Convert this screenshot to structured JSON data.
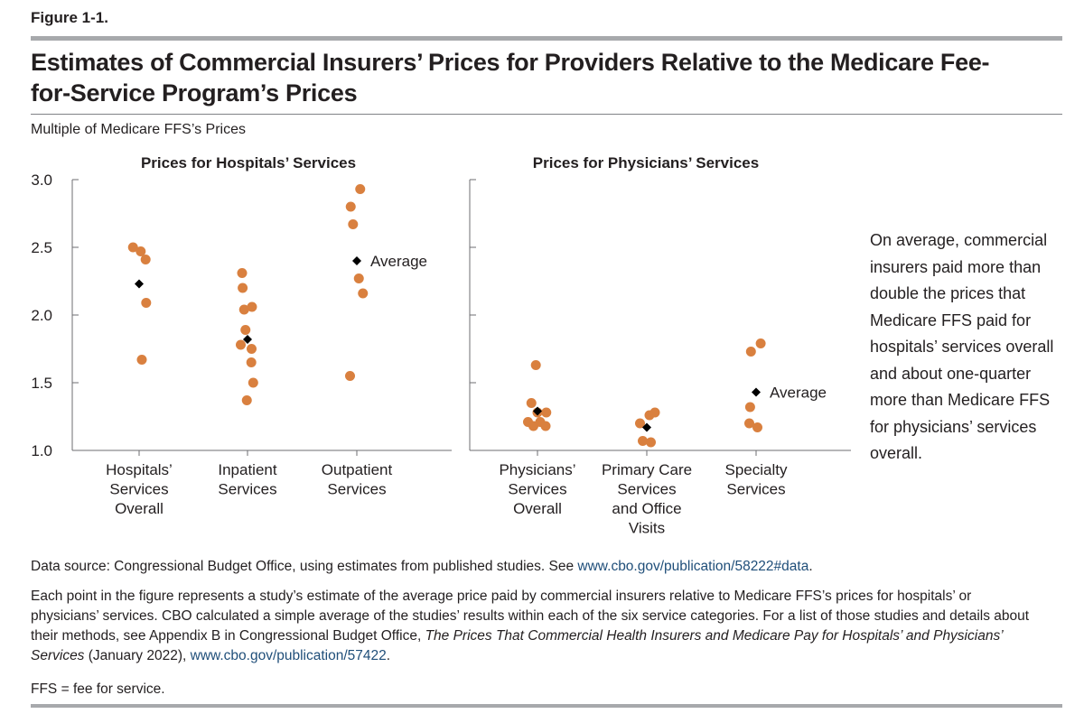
{
  "figure_label": "Figure 1-1.",
  "title": "Estimates of Commercial Insurers’ Prices for Providers Relative to the Medicare Fee-for-Service Program’s Prices",
  "annotation": "On average, commercial insurers paid more than double the prices that Medicare FFS paid for hospitals’ services overall and about one-quarter more than Medicare FFS for physicians’ services overall.",
  "notes": {
    "source_prefix": "Data source: Congressional Budget Office, using estimates from published studies. See ",
    "source_link": "www.cbo.gov/publication/58222#data",
    "source_suffix": ".",
    "note_part1": "Each point in the figure represents a study’s estimate of the average price paid by commercial insurers relative to Medicare FFS’s prices for hospitals’ or physicians’ services. CBO calculated a simple average of the studies’ results within each of the six service categories. For a list of those studies and details about their methods, see Appendix B in Congressional Budget Office, ",
    "note_italic": "The Prices That Commercial Health Insurers and Medicare Pay for Hospitals’ and Physicians’ Services",
    "note_part2": " (January 2022), ",
    "note_link": "www.cbo.gov/publication/57422",
    "note_part3": ".",
    "ffs": "FFS = fee for service."
  },
  "colors": {
    "point": "#d9803f",
    "average": "#000000",
    "axis": "#6d6e71",
    "rule": "#a7a9ac",
    "link": "#1f4e79"
  },
  "chart_data": {
    "type": "scatter",
    "ylabel": "Multiple of Medicare FFS’s Prices",
    "ylim": [
      1.0,
      3.0
    ],
    "yticks": [
      "1.0",
      "1.5",
      "2.0",
      "2.5",
      "3.0"
    ],
    "average_label": "Average",
    "panels": [
      {
        "title": "Prices for Hospitals’ Services",
        "categories": [
          {
            "label": [
              "Hospitals’",
              "Services",
              "Overall"
            ],
            "average": 2.23,
            "points": [
              [
                -0.45,
                2.5
              ],
              [
                0.12,
                2.47
              ],
              [
                0.48,
                2.41
              ],
              [
                0.52,
                2.09
              ],
              [
                0.2,
                1.67
              ]
            ]
          },
          {
            "label": [
              "Inpatient",
              "Services"
            ],
            "average": 1.82,
            "points": [
              [
                -0.4,
                2.31
              ],
              [
                -0.36,
                2.2
              ],
              [
                -0.25,
                2.04
              ],
              [
                0.33,
                2.06
              ],
              [
                -0.15,
                1.89
              ],
              [
                -0.5,
                1.78
              ],
              [
                0.3,
                1.75
              ],
              [
                0.28,
                1.65
              ],
              [
                0.42,
                1.5
              ],
              [
                -0.05,
                1.37
              ]
            ]
          },
          {
            "label": [
              "Outpatient",
              "Services"
            ],
            "average": 2.4,
            "average_labeled": true,
            "points": [
              [
                0.25,
                2.93
              ],
              [
                -0.45,
                2.8
              ],
              [
                -0.28,
                2.67
              ],
              [
                0.15,
                2.27
              ],
              [
                0.45,
                2.16
              ],
              [
                -0.5,
                1.55
              ]
            ]
          }
        ]
      },
      {
        "title": "Prices for Physicians’ Services",
        "categories": [
          {
            "label": [
              "Physicians’",
              "Services",
              "Overall"
            ],
            "average": 1.29,
            "points": [
              [
                -0.12,
                1.63
              ],
              [
                -0.45,
                1.35
              ],
              [
                0.65,
                1.28
              ],
              [
                -0.7,
                1.21
              ],
              [
                0.2,
                1.21
              ],
              [
                -0.3,
                1.18
              ],
              [
                0.6,
                1.18
              ],
              [
                0.0,
                1.28
              ]
            ]
          },
          {
            "label": [
              "Primary Care",
              "Services",
              "and Office",
              "Visits"
            ],
            "average": 1.17,
            "points": [
              [
                0.2,
                1.26
              ],
              [
                0.6,
                1.28
              ],
              [
                -0.5,
                1.2
              ],
              [
                -0.3,
                1.07
              ],
              [
                0.3,
                1.06
              ]
            ]
          },
          {
            "label": [
              "Specialty",
              "Services"
            ],
            "average": 1.43,
            "average_labeled": true,
            "points": [
              [
                -0.38,
                1.73
              ],
              [
                0.34,
                1.79
              ],
              [
                -0.44,
                1.32
              ],
              [
                -0.5,
                1.2
              ],
              [
                0.1,
                1.17
              ]
            ]
          }
        ]
      }
    ]
  }
}
